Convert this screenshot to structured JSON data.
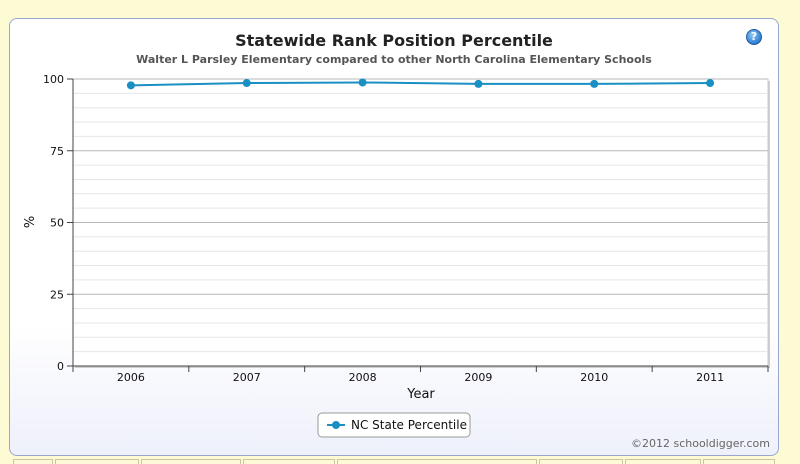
{
  "chart_data": {
    "type": "line",
    "title": "Statewide Rank Position Percentile",
    "subtitle": "Walter L Parsley Elementary compared to other North Carolina Elementary Schools",
    "xlabel": "Year",
    "ylabel": "%",
    "categories": [
      "2006",
      "2007",
      "2008",
      "2009",
      "2010",
      "2011"
    ],
    "ylim": [
      0,
      100
    ],
    "yticks": [
      0,
      25,
      50,
      75,
      100
    ],
    "grid": true,
    "legend_position": "bottom-center",
    "series": [
      {
        "name": "NC State Percentile",
        "color": "#1a8fc3",
        "values": [
          97.8,
          98.6,
          98.8,
          98.3,
          98.3,
          98.6
        ]
      }
    ]
  },
  "credit": "©2012 schooldigger.com",
  "help_icon": "help-icon"
}
